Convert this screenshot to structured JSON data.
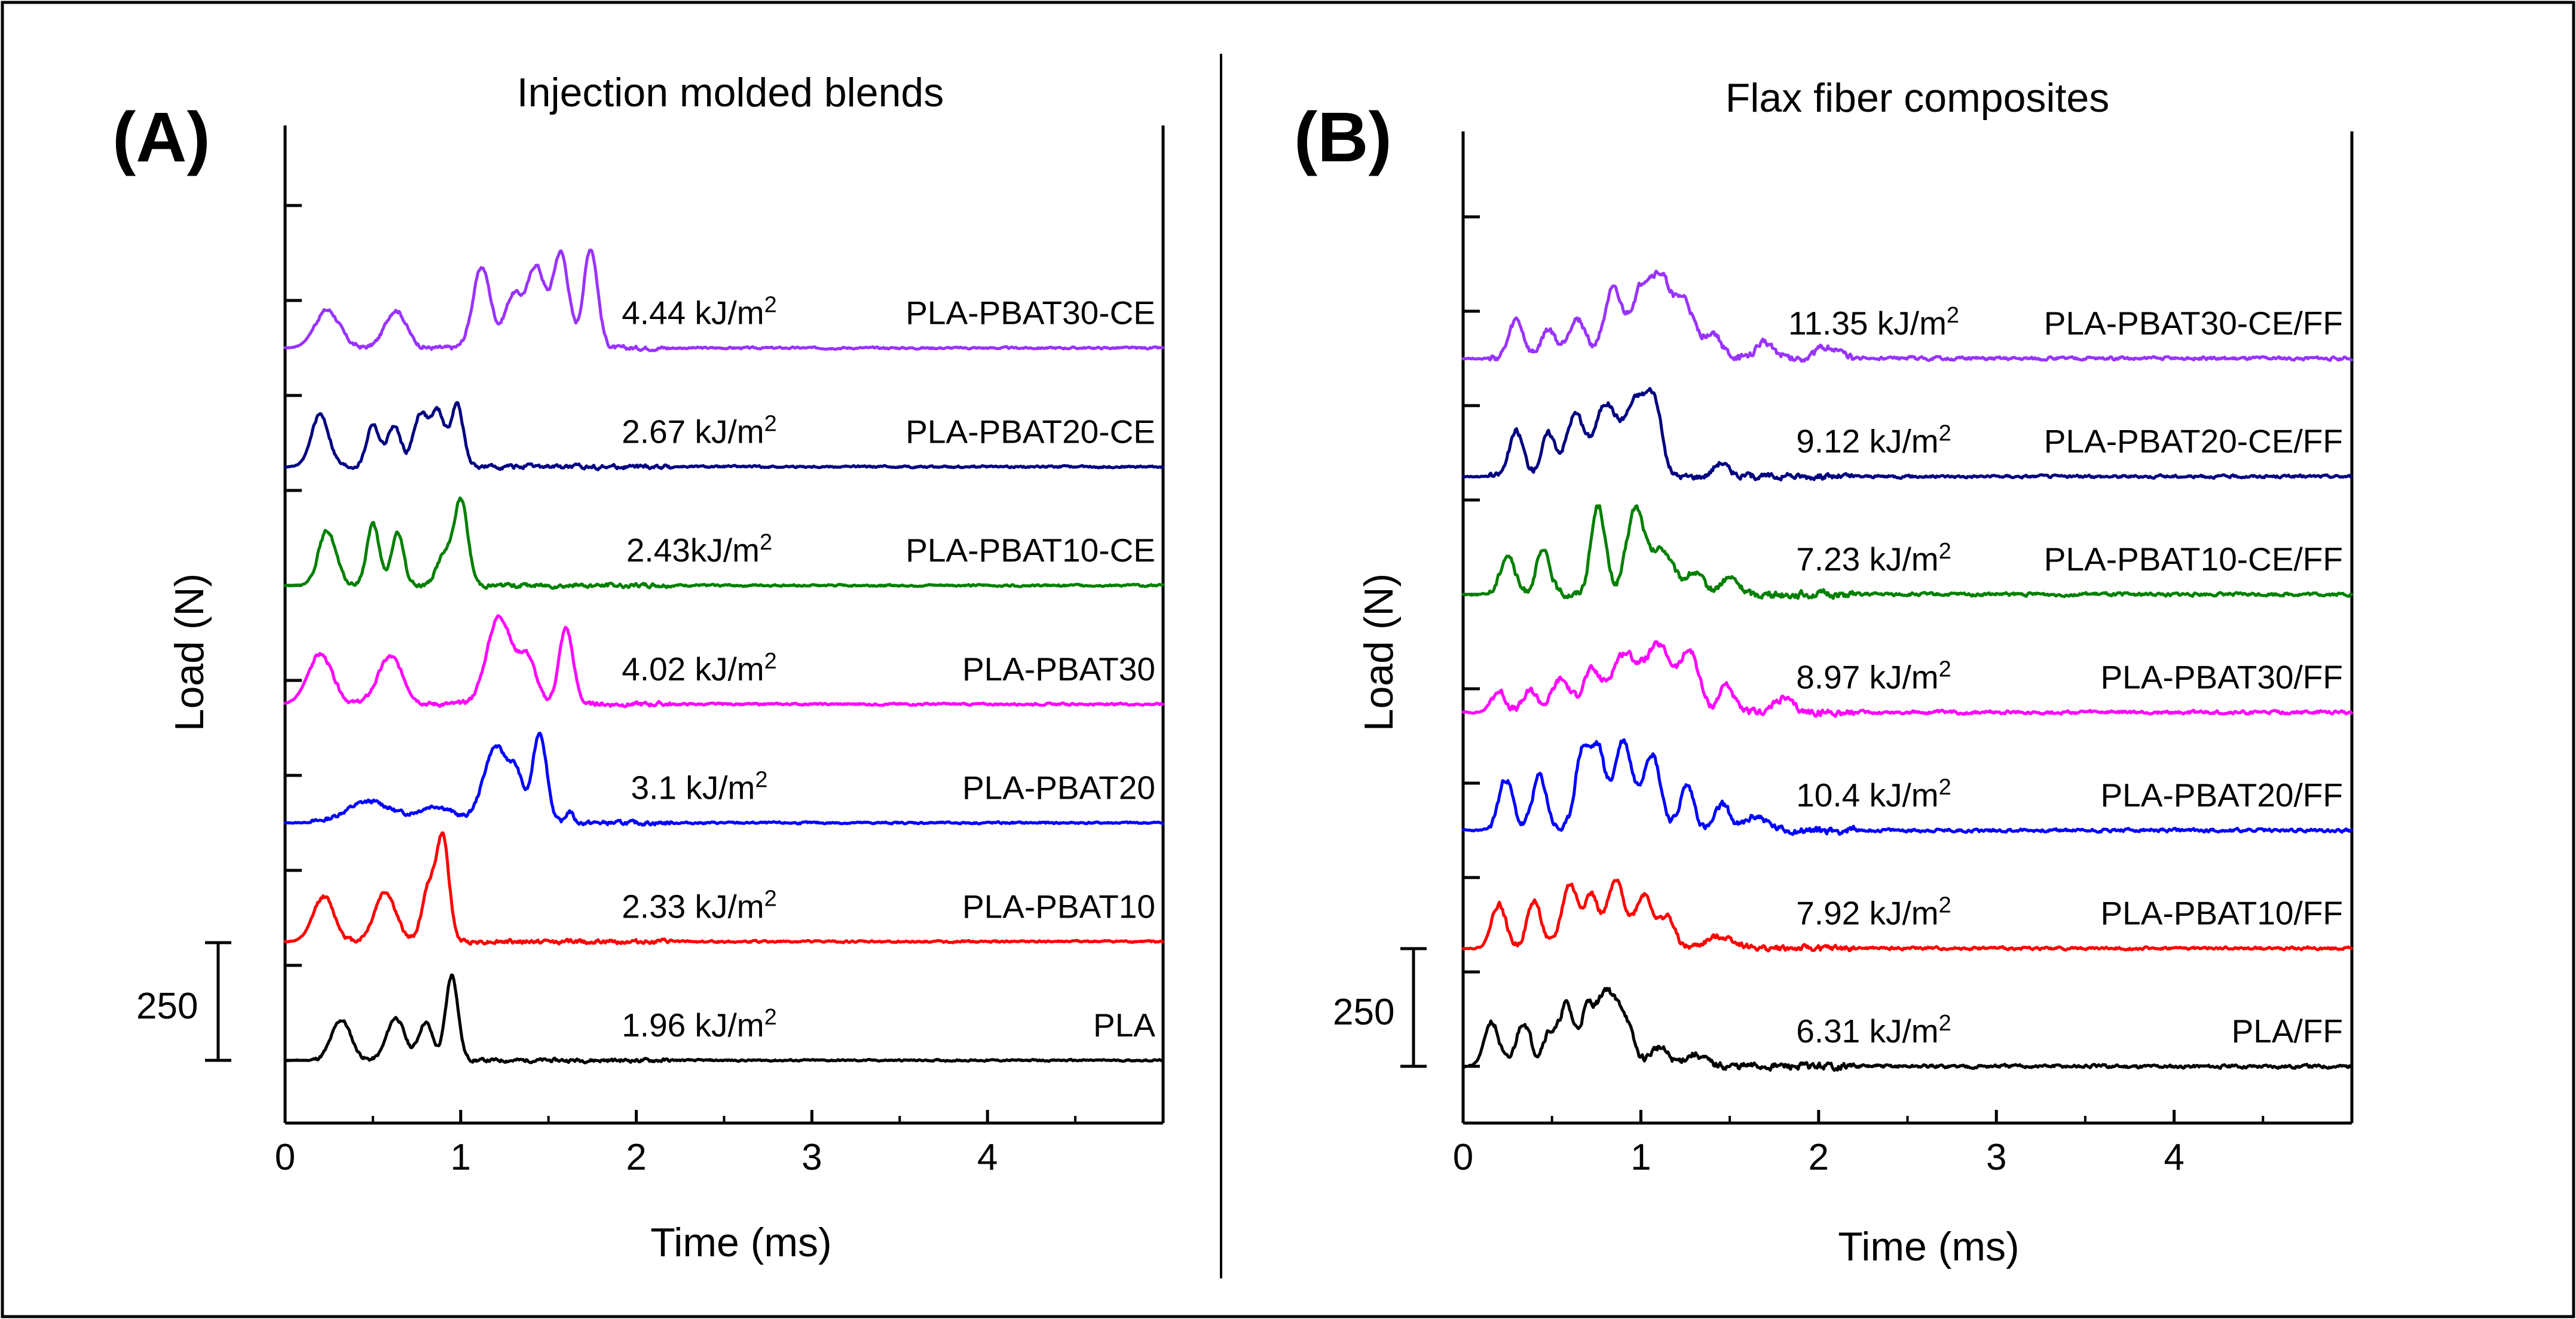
{
  "colors": {
    "PLA": "#000000",
    "PBAT10": "#ff0000",
    "PBAT20": "#0000ff",
    "PBAT30": "#ff00ff",
    "PBAT10-CE": "#008000",
    "PBAT20-CE": "#000080",
    "PBAT30-CE": "#9933ff"
  },
  "chart_data": [
    {
      "type": "line",
      "panel_label": "(A)",
      "title": "Injection molded blends",
      "xlabel": "Time (ms)",
      "ylabel": "Load (N)",
      "xlim": [
        0,
        5
      ],
      "xticks": [
        "0",
        "1",
        "2",
        "3",
        "4"
      ],
      "scale_bar_label": "250",
      "scale_bar_value": 250,
      "energy_unit": "kJ/m",
      "energy_unit_exp": "2",
      "series": [
        {
          "name": "PLA",
          "key": "PLA",
          "energy": "1.96 ",
          "baseline": 0,
          "peaks": [
            [
              0.32,
              85,
              0.055
            ],
            [
              0.63,
              90,
              0.05
            ],
            [
              0.8,
              80,
              0.04
            ],
            [
              0.95,
              180,
              0.035
            ]
          ],
          "noise": 6,
          "seed": 11
        },
        {
          "name": "PLA-PBAT10",
          "key": "PBAT10",
          "energy": "2.33 ",
          "baseline": 250,
          "peaks": [
            [
              0.22,
              95,
              0.06
            ],
            [
              0.57,
              105,
              0.06
            ],
            [
              0.82,
              115,
              0.04
            ],
            [
              0.9,
              210,
              0.035
            ]
          ],
          "noise": 7,
          "seed": 12
        },
        {
          "name": "PLA-PBAT20",
          "key": "PBAT20",
          "energy": "3.1 ",
          "baseline": 500,
          "peaks": [
            [
              0.48,
              45,
              0.13
            ],
            [
              0.86,
              35,
              0.1
            ],
            [
              1.2,
              160,
              0.07
            ],
            [
              1.32,
              80,
              0.04
            ],
            [
              1.45,
              190,
              0.04
            ],
            [
              1.62,
              25,
              0.02
            ]
          ],
          "noise": 7,
          "seed": 13
        },
        {
          "name": "PLA-PBAT30",
          "key": "PBAT30",
          "energy": "4.02 ",
          "baseline": 750,
          "peaks": [
            [
              0.2,
              105,
              0.07
            ],
            [
              0.6,
              100,
              0.07
            ],
            [
              1.22,
              185,
              0.07
            ],
            [
              1.38,
              95,
              0.05
            ],
            [
              1.6,
              160,
              0.04
            ]
          ],
          "noise": 7,
          "seed": 14
        },
        {
          "name": "PLA-PBAT10-CE",
          "key": "PBAT10-CE",
          "energy": "2.43",
          "baseline": 1000,
          "peaks": [
            [
              0.24,
              115,
              0.05
            ],
            [
              0.5,
              130,
              0.035
            ],
            [
              0.64,
              110,
              0.035
            ],
            [
              0.9,
              60,
              0.04
            ],
            [
              1.0,
              180,
              0.04
            ]
          ],
          "noise": 7,
          "seed": 15
        },
        {
          "name": "PLA-PBAT20-CE",
          "key": "PBAT20-CE",
          "energy": "2.67 ",
          "baseline": 1250,
          "peaks": [
            [
              0.2,
              110,
              0.05
            ],
            [
              0.5,
              90,
              0.035
            ],
            [
              0.62,
              85,
              0.04
            ],
            [
              0.77,
              110,
              0.04
            ],
            [
              0.87,
              115,
              0.04
            ],
            [
              0.98,
              130,
              0.035
            ]
          ],
          "noise": 7,
          "seed": 16
        },
        {
          "name": "PLA-PBAT30-CE",
          "key": "PBAT30-CE",
          "energy": "4.44 ",
          "baseline": 1500,
          "peaks": [
            [
              0.24,
              80,
              0.07
            ],
            [
              0.63,
              80,
              0.06
            ],
            [
              1.12,
              170,
              0.05
            ],
            [
              1.3,
              110,
              0.05
            ],
            [
              1.43,
              170,
              0.05
            ],
            [
              1.57,
              200,
              0.045
            ],
            [
              1.74,
              210,
              0.04
            ]
          ],
          "noise": 7,
          "seed": 17
        }
      ]
    },
    {
      "type": "line",
      "panel_label": "(B)",
      "title": "Flax fiber composites",
      "xlabel": "Time (ms)",
      "ylabel": "Load (N)",
      "xlim": [
        0,
        5
      ],
      "xticks": [
        "0",
        "1",
        "2",
        "3",
        "4"
      ],
      "scale_bar_label": "250",
      "scale_bar_value": 250,
      "energy_unit": "kJ/m",
      "energy_unit_exp": "2",
      "series": [
        {
          "name": "PLA/FF",
          "key": "PLA",
          "energy": "6.31 ",
          "baseline": 0,
          "peaks": [
            [
              0.16,
              95,
              0.04
            ],
            [
              0.34,
              95,
              0.04
            ],
            [
              0.48,
              70,
              0.035
            ],
            [
              0.58,
              130,
              0.04
            ],
            [
              0.7,
              120,
              0.04
            ],
            [
              0.8,
              145,
              0.045
            ],
            [
              0.9,
              110,
              0.05
            ],
            [
              1.1,
              40,
              0.05
            ],
            [
              1.3,
              25,
              0.06
            ]
          ],
          "noise": 12,
          "seed": 21
        },
        {
          "name": "PLA-PBAT10/FF",
          "key": "PBAT10",
          "energy": "7.92 ",
          "baseline": 250,
          "peaks": [
            [
              0.2,
              95,
              0.04
            ],
            [
              0.4,
              100,
              0.04
            ],
            [
              0.6,
              135,
              0.045
            ],
            [
              0.72,
              110,
              0.04
            ],
            [
              0.86,
              140,
              0.05
            ],
            [
              1.02,
              115,
              0.05
            ],
            [
              1.15,
              65,
              0.04
            ],
            [
              1.45,
              25,
              0.08
            ]
          ],
          "noise": 10,
          "seed": 22
        },
        {
          "name": "PLA-PBAT20/FF",
          "key": "PBAT20",
          "energy": "10.4 ",
          "baseline": 500,
          "peaks": [
            [
              0.24,
              110,
              0.04
            ],
            [
              0.43,
              115,
              0.04
            ],
            [
              0.67,
              165,
              0.04
            ],
            [
              0.76,
              165,
              0.04
            ],
            [
              0.9,
              190,
              0.05
            ],
            [
              1.06,
              165,
              0.05
            ],
            [
              1.26,
              95,
              0.04
            ],
            [
              1.46,
              55,
              0.04
            ],
            [
              1.65,
              30,
              0.06
            ]
          ],
          "noise": 12,
          "seed": 23
        },
        {
          "name": "PLA-PBAT30/FF",
          "key": "PBAT30",
          "energy": "8.97 ",
          "baseline": 750,
          "peaks": [
            [
              0.2,
              45,
              0.04
            ],
            [
              0.38,
              45,
              0.04
            ],
            [
              0.55,
              70,
              0.05
            ],
            [
              0.72,
              85,
              0.05
            ],
            [
              0.9,
              120,
              0.07
            ],
            [
              1.1,
              140,
              0.08
            ],
            [
              1.28,
              120,
              0.05
            ],
            [
              1.48,
              60,
              0.04
            ],
            [
              1.8,
              30,
              0.05
            ]
          ],
          "noise": 12,
          "seed": 24
        },
        {
          "name": "PLA-PBAT10-CE/FF",
          "key": "PBAT10-CE",
          "energy": "7.23 ",
          "baseline": 1000,
          "peaks": [
            [
              0.25,
              85,
              0.04
            ],
            [
              0.45,
              90,
              0.04
            ],
            [
              0.76,
              190,
              0.04
            ],
            [
              0.97,
              180,
              0.05
            ],
            [
              1.12,
              95,
              0.06
            ],
            [
              1.3,
              45,
              0.05
            ],
            [
              1.5,
              35,
              0.05
            ]
          ],
          "noise": 12,
          "seed": 25
        },
        {
          "name": "PLA-PBAT20-CE/FF",
          "key": "PBAT20-CE",
          "energy": "9.12 ",
          "baseline": 1250,
          "peaks": [
            [
              0.3,
              95,
              0.04
            ],
            [
              0.48,
              90,
              0.04
            ],
            [
              0.63,
              130,
              0.05
            ],
            [
              0.8,
              150,
              0.06
            ],
            [
              0.98,
              165,
              0.07
            ],
            [
              1.08,
              110,
              0.04
            ],
            [
              1.45,
              30,
              0.04
            ]
          ],
          "noise": 10,
          "seed": 26
        },
        {
          "name": "PLA-PBAT30-CE/FF",
          "key": "PBAT30-CE",
          "energy": "11.35 ",
          "baseline": 1500,
          "peaks": [
            [
              0.3,
              80,
              0.04
            ],
            [
              0.48,
              60,
              0.04
            ],
            [
              0.64,
              85,
              0.05
            ],
            [
              0.84,
              140,
              0.05
            ],
            [
              1.0,
              135,
              0.06
            ],
            [
              1.12,
              155,
              0.06
            ],
            [
              1.25,
              110,
              0.05
            ],
            [
              1.4,
              55,
              0.05
            ],
            [
              1.7,
              35,
              0.05
            ],
            [
              2.05,
              25,
              0.06
            ]
          ],
          "noise": 12,
          "seed": 27
        }
      ]
    }
  ]
}
